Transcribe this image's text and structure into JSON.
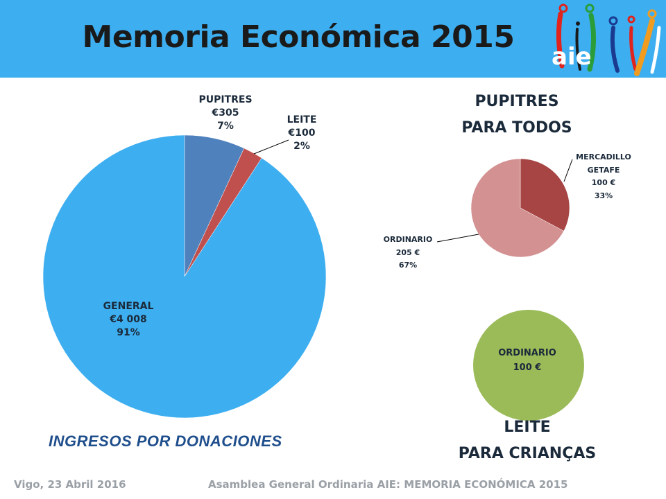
{
  "header": {
    "title": "Memoria Económica 2015",
    "logo_text": "aie"
  },
  "main_chart": {
    "caption": "INGRESOS POR DONACIONES",
    "labels": {
      "pupitres": [
        "PUPITRES",
        "€305",
        "7%"
      ],
      "leite": [
        "LEITE",
        "€100",
        "2%"
      ],
      "general": [
        "GENERAL",
        "€4 008",
        "91%"
      ]
    }
  },
  "pupitres_chart": {
    "title_line1": "PUPITRES",
    "title_line2": "PARA TODOS",
    "labels": {
      "mercadillo": [
        "MERCADILLO",
        "GETAFE",
        "100 €",
        "33%"
      ],
      "ordinario": [
        "ORDINARIO",
        "205 €",
        "67%"
      ]
    }
  },
  "leite_chart": {
    "title_line1": "LEITE",
    "title_line2": "PARA CRIANÇAS",
    "labels": {
      "ordinario": [
        "ORDINARIO",
        "100 €"
      ]
    }
  },
  "footer": {
    "left": "Vigo, 23 Abril 2016",
    "right": "Asamblea General Ordinaria AIE:  MEMORIA ECONÓMICA 2015"
  },
  "colors": {
    "header": "#3daef0",
    "general": "#3daef0",
    "pupitres": "#4f81bd",
    "leite": "#c0504d",
    "mercadillo": "#a74545",
    "ordinario_pupitres": "#d39191",
    "ordinario_leite": "#9bbb59"
  },
  "chart_data": [
    {
      "type": "pie",
      "title": "INGRESOS POR DONACIONES",
      "categories": [
        "PUPITRES",
        "LEITE",
        "GENERAL"
      ],
      "values": [
        305,
        100,
        4008
      ],
      "percent_labels": [
        "7%",
        "2%",
        "91%"
      ],
      "value_labels": [
        "€305",
        "€100",
        "€4 008"
      ]
    },
    {
      "type": "pie",
      "title": "PUPITRES PARA TODOS",
      "categories": [
        "MERCADILLO GETAFE",
        "ORDINARIO"
      ],
      "values": [
        100,
        205
      ],
      "percent_labels": [
        "33%",
        "67%"
      ],
      "value_labels": [
        "100 €",
        "205 €"
      ]
    },
    {
      "type": "pie",
      "title": "LEITE PARA CRIANÇAS",
      "categories": [
        "ORDINARIO"
      ],
      "values": [
        100
      ],
      "value_labels": [
        "100 €"
      ]
    }
  ]
}
